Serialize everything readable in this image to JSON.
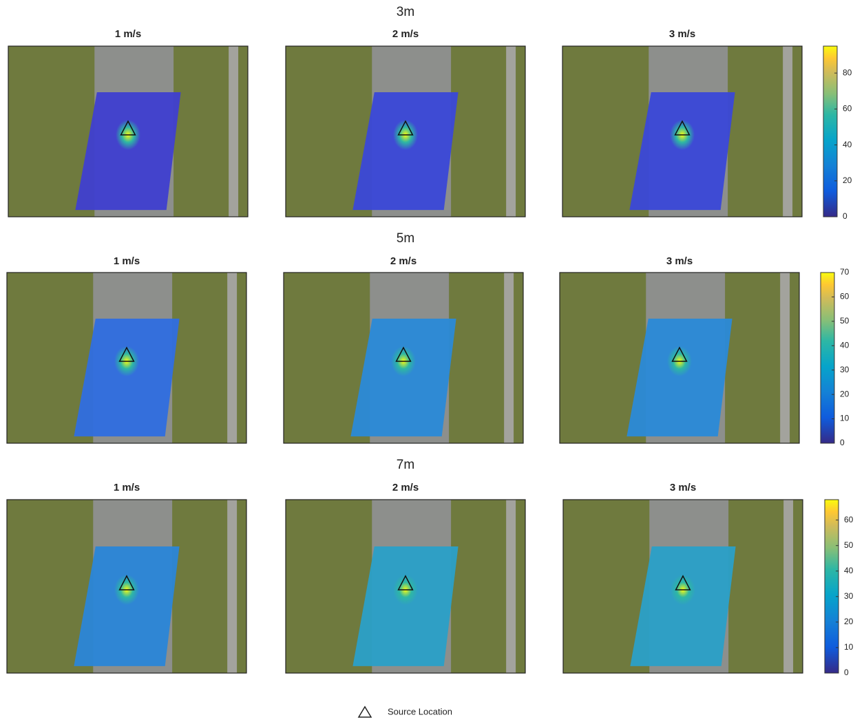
{
  "chart_data": [
    {
      "type": "scatter",
      "title": "3m",
      "subplot_titles": [
        "1 m/s",
        "2 m/s",
        "3 m/s"
      ],
      "clim": [
        0,
        95
      ],
      "cticks": [
        0,
        20,
        40,
        60,
        80
      ]
    },
    {
      "type": "scatter",
      "title": "5m",
      "subplot_titles": [
        "1 m/s",
        "2 m/s",
        "3 m/s"
      ],
      "clim": [
        0,
        70
      ],
      "cticks": [
        0,
        10,
        20,
        30,
        40,
        50,
        60,
        70
      ]
    },
    {
      "type": "scatter",
      "title": "7m",
      "subplot_titles": [
        "1 m/s",
        "2 m/s",
        "3 m/s"
      ],
      "clim": [
        0,
        68
      ],
      "cticks": [
        0,
        10,
        20,
        30,
        40,
        50,
        60
      ]
    }
  ],
  "legend": {
    "label": "Source Location"
  }
}
